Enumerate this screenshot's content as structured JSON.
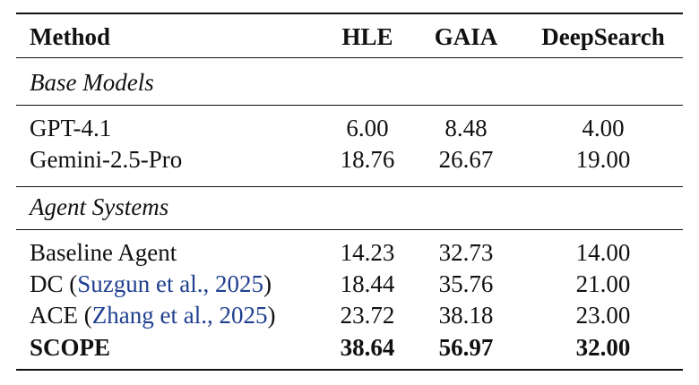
{
  "table": {
    "header": [
      "Method",
      "HLE",
      "GAIA",
      "DeepSearch"
    ],
    "sections": [
      {
        "title": "Base Models",
        "rows": [
          {
            "method": {
              "text": "GPT-4.1"
            },
            "cells": [
              "6.00",
              "8.48",
              "4.00"
            ]
          },
          {
            "method": {
              "text": "Gemini-2.5-Pro"
            },
            "cells": [
              "18.76",
              "26.67",
              "19.00"
            ]
          }
        ]
      },
      {
        "title": "Agent Systems",
        "rows": [
          {
            "method": {
              "text": "Baseline Agent"
            },
            "cells": [
              "14.23",
              "32.73",
              "14.00"
            ]
          },
          {
            "method": {
              "text": "DC (",
              "cite": "Suzgun et al., 2025",
              "close": ")"
            },
            "cells": [
              "18.44",
              "35.76",
              "21.00"
            ]
          },
          {
            "method": {
              "text": "ACE (",
              "cite": "Zhang et al., 2025",
              "close": ")"
            },
            "cells": [
              "23.72",
              "38.18",
              "23.00"
            ]
          },
          {
            "method": {
              "text": "SCOPE"
            },
            "cells": [
              "38.64",
              "56.97",
              "32.00"
            ],
            "bold": true
          }
        ]
      }
    ]
  }
}
